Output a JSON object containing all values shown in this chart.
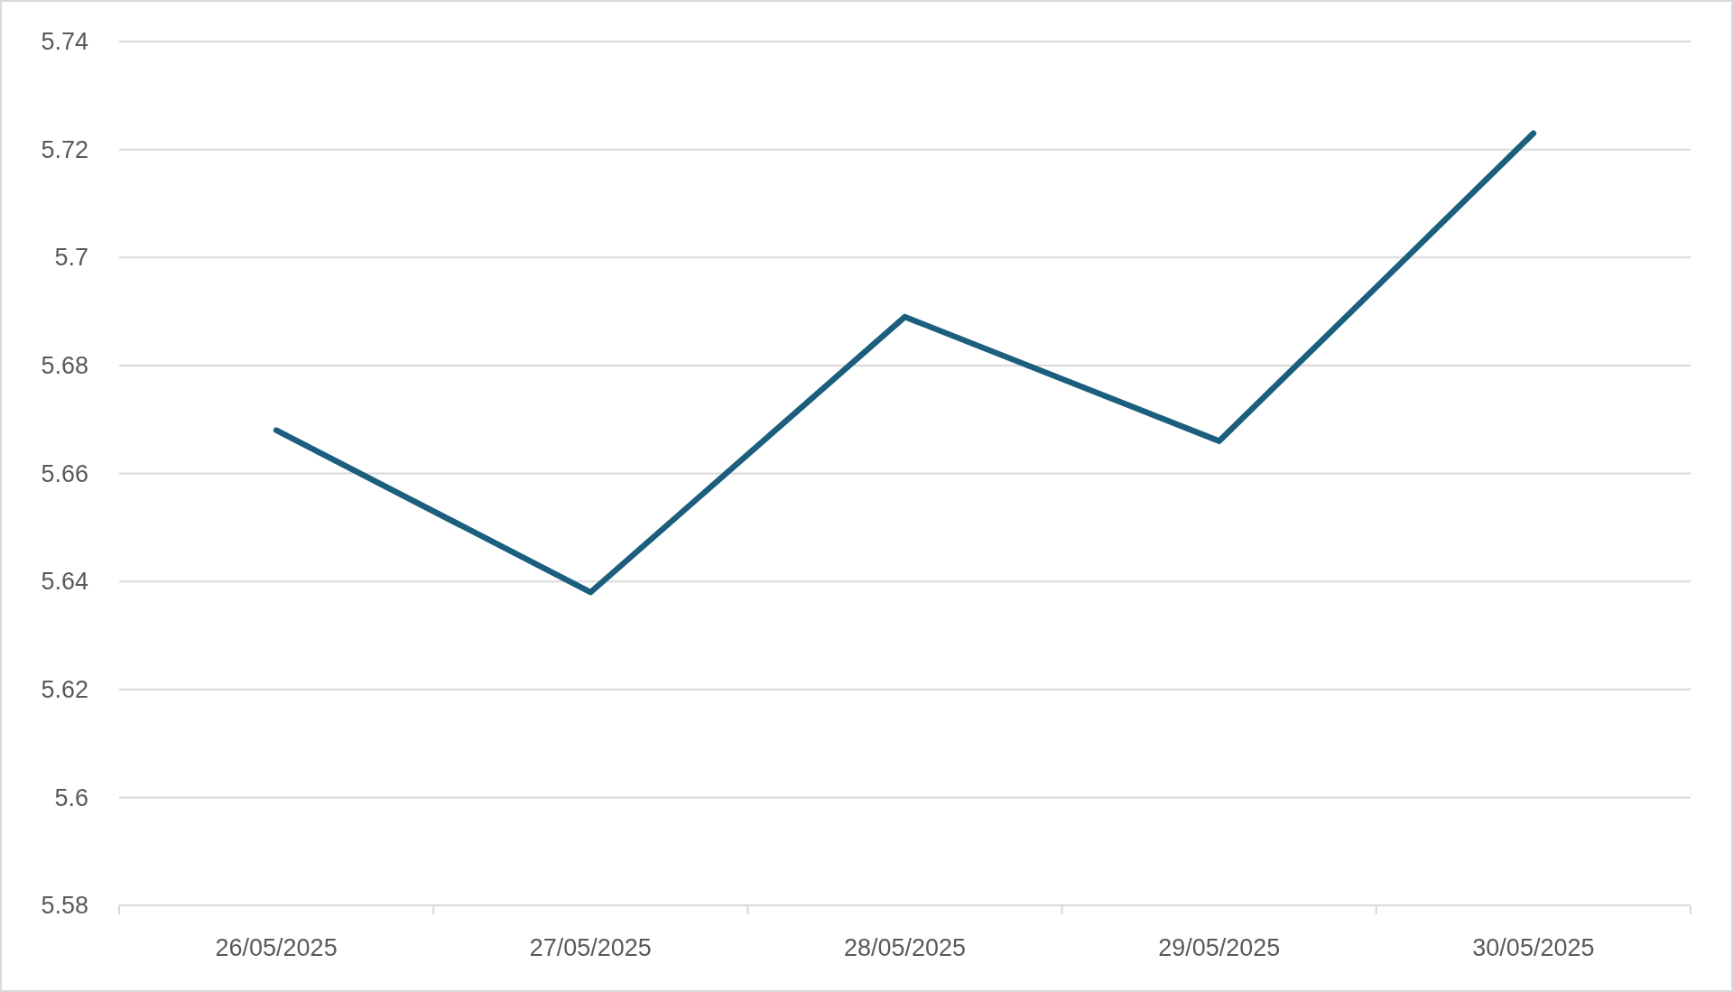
{
  "chart_data": {
    "type": "line",
    "categories": [
      "26/05/2025",
      "27/05/2025",
      "28/05/2025",
      "29/05/2025",
      "30/05/2025"
    ],
    "series": [
      {
        "color": "#1b5e7e",
        "values": [
          5.668,
          5.638,
          5.689,
          5.666,
          5.723
        ]
      }
    ],
    "ylim": [
      5.58,
      5.74
    ],
    "yticks": [
      5.58,
      5.6,
      5.62,
      5.64,
      5.66,
      5.68,
      5.7,
      5.72,
      5.74
    ],
    "grid": "y",
    "marker": "none",
    "line_style": "solid"
  }
}
